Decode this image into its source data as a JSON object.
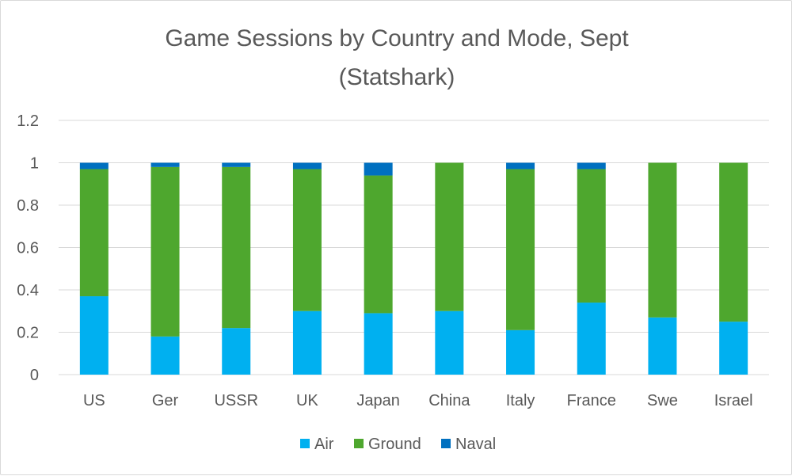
{
  "chart_data": {
    "type": "bar",
    "stacked": true,
    "title": [
      "Game Sessions by Country and Mode, Sept",
      "(Statshark)"
    ],
    "categories": [
      "US",
      "Ger",
      "USSR",
      "UK",
      "Japan",
      "China",
      "Italy",
      "France",
      "Swe",
      "Israel"
    ],
    "series": [
      {
        "name": "Air",
        "color": "#00b0f0",
        "values": [
          0.37,
          0.18,
          0.22,
          0.3,
          0.29,
          0.3,
          0.21,
          0.34,
          0.27,
          0.25
        ]
      },
      {
        "name": "Ground",
        "color": "#4ea72e",
        "values": [
          0.6,
          0.8,
          0.76,
          0.67,
          0.65,
          0.7,
          0.76,
          0.63,
          0.73,
          0.75
        ]
      },
      {
        "name": "Naval",
        "color": "#0070c0",
        "values": [
          0.03,
          0.02,
          0.02,
          0.03,
          0.06,
          0.0,
          0.03,
          0.03,
          0.0,
          0.0
        ]
      }
    ],
    "yticks": [
      "0",
      "0.2",
      "0.4",
      "0.6",
      "0.8",
      "1",
      "1.2"
    ],
    "ylim": [
      0,
      1.2
    ],
    "grid": true,
    "legend": "bottom"
  }
}
